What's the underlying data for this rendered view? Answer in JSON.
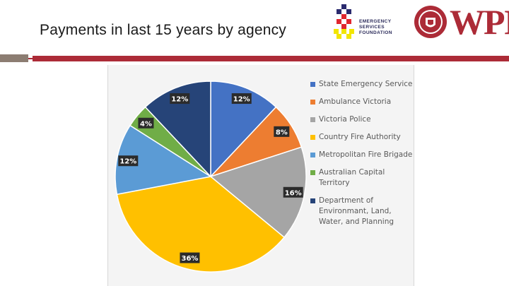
{
  "slide": {
    "title": "Payments in last 15 years by agency"
  },
  "logos": {
    "esf_lines": [
      "EMERGENCY",
      "SERVICES",
      "FOUNDATION"
    ],
    "wpi_text": "WPI"
  },
  "colors": {
    "accent_red": "#ac2b37",
    "accent_grey": "#8c7d72"
  },
  "chart_data": {
    "type": "pie",
    "title": "",
    "series": [
      {
        "name": "State Emergency Service",
        "value": 12,
        "label": "12%",
        "color": "#4472c4"
      },
      {
        "name": "Ambulance Victoria",
        "value": 8,
        "label": "8%",
        "color": "#ed7d31"
      },
      {
        "name": "Victoria Police",
        "value": 16,
        "label": "16%",
        "color": "#a5a5a5"
      },
      {
        "name": "Country Fire Authority",
        "value": 36,
        "label": "36%",
        "color": "#ffc000"
      },
      {
        "name": "Metropolitan Fire Brigade",
        "value": 12,
        "label": "12%",
        "color": "#5b9bd5"
      },
      {
        "name": "Australian Capital Territory",
        "value": 4,
        "label": "4%",
        "color": "#70ad47"
      },
      {
        "name": "Department of Environmant, Land, Water, and Planning",
        "value": 12,
        "label": "12%",
        "color": "#264478"
      }
    ],
    "legend_position": "right"
  }
}
